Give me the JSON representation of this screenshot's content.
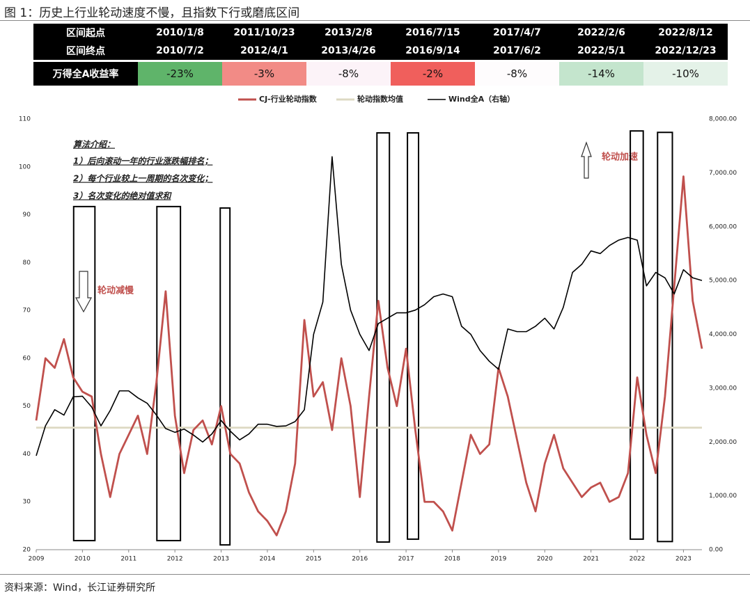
{
  "title": "图 1：历史上行业轮动速度不慢，且指数下行或磨底区间",
  "source": "资料来源：Wind，长江证券研究所",
  "table": {
    "row_labels": [
      "区间起点",
      "区间终点",
      "万得全A收益率"
    ],
    "periods": [
      {
        "start": "2010/1/8",
        "end": "2010/7/2",
        "return": "-23%",
        "color": "#5fb46a"
      },
      {
        "start": "2011/10/23",
        "end": "2012/4/1",
        "return": "-3%",
        "color": "#f28b86"
      },
      {
        "start": "2013/2/8",
        "end": "2013/4/26",
        "return": "-8%",
        "color": "#fcf3f8"
      },
      {
        "start": "2016/7/15",
        "end": "2016/9/14",
        "return": "-2%",
        "color": "#f05f5c"
      },
      {
        "start": "2017/4/7",
        "end": "2017/6/2",
        "return": "-8%",
        "color": "#fefcfd"
      },
      {
        "start": "2022/2/6",
        "end": "2022/5/1",
        "return": "-14%",
        "color": "#c4e5cd"
      },
      {
        "start": "2022/8/12",
        "end": "2022/12/23",
        "return": "-10%",
        "color": "#e4f2e8"
      }
    ]
  },
  "chart_data": {
    "type": "line",
    "x": [
      2009.0,
      2009.2,
      2009.4,
      2009.6,
      2009.8,
      2010.0,
      2010.2,
      2010.4,
      2010.6,
      2010.8,
      2011.0,
      2011.2,
      2011.4,
      2011.6,
      2011.8,
      2012.0,
      2012.2,
      2012.4,
      2012.6,
      2012.8,
      2013.0,
      2013.2,
      2013.4,
      2013.6,
      2013.8,
      2014.0,
      2014.2,
      2014.4,
      2014.6,
      2014.8,
      2015.0,
      2015.2,
      2015.4,
      2015.6,
      2015.8,
      2016.0,
      2016.2,
      2016.4,
      2016.6,
      2016.8,
      2017.0,
      2017.2,
      2017.4,
      2017.6,
      2017.8,
      2018.0,
      2018.2,
      2018.4,
      2018.6,
      2018.8,
      2019.0,
      2019.2,
      2019.4,
      2019.6,
      2019.8,
      2020.0,
      2020.2,
      2020.4,
      2020.6,
      2020.8,
      2021.0,
      2021.2,
      2021.4,
      2021.6,
      2021.8,
      2022.0,
      2022.2,
      2022.4,
      2022.6,
      2022.8,
      2023.0,
      2023.2,
      2023.4
    ],
    "series": [
      {
        "name": "CJ-行业轮动指数",
        "color": "#c0504d",
        "axis": "y",
        "values": [
          47,
          60,
          58,
          64,
          56,
          53,
          52,
          40,
          31,
          40,
          44,
          48,
          40,
          55,
          74,
          48,
          36,
          45,
          47,
          42,
          50,
          40,
          38,
          32,
          28,
          26,
          23,
          28,
          38,
          68,
          52,
          55,
          45,
          60,
          50,
          31,
          52,
          72,
          58,
          50,
          62,
          45,
          30,
          30,
          28,
          24,
          34,
          44,
          40,
          42,
          58,
          52,
          43,
          34,
          28,
          38,
          44,
          37,
          34,
          31,
          33,
          34,
          30,
          31,
          36,
          56,
          44,
          36,
          52,
          75,
          98,
          72,
          62
        ]
      },
      {
        "name": "轮动指数均值",
        "color": "#ddd9c3",
        "axis": "y",
        "values": [
          45.5,
          45.5,
          45.5,
          45.5,
          45.5,
          45.5,
          45.5,
          45.5,
          45.5,
          45.5,
          45.5,
          45.5,
          45.5,
          45.5,
          45.5,
          45.5,
          45.5,
          45.5,
          45.5,
          45.5,
          45.5,
          45.5,
          45.5,
          45.5,
          45.5,
          45.5,
          45.5,
          45.5,
          45.5,
          45.5,
          45.5,
          45.5,
          45.5,
          45.5,
          45.5,
          45.5,
          45.5,
          45.5,
          45.5,
          45.5,
          45.5,
          45.5,
          45.5,
          45.5,
          45.5,
          45.5,
          45.5,
          45.5,
          45.5,
          45.5,
          45.5,
          45.5,
          45.5,
          45.5,
          45.5,
          45.5,
          45.5,
          45.5,
          45.5,
          45.5,
          45.5,
          45.5,
          45.5,
          45.5,
          45.5,
          45.5,
          45.5,
          45.5,
          45.5,
          45.5,
          45.5,
          45.5,
          45.5
        ]
      },
      {
        "name": "Wind全A（右轴）",
        "color": "#000000",
        "axis": "y2",
        "values": [
          1745,
          2300,
          2600,
          2500,
          2840,
          2850,
          2650,
          2300,
          2585,
          2950,
          2950,
          2820,
          2720,
          2500,
          2250,
          2180,
          2240,
          2130,
          2000,
          2150,
          2400,
          2200,
          2040,
          2150,
          2330,
          2330,
          2290,
          2300,
          2380,
          2600,
          4000,
          4600,
          7300,
          5300,
          4450,
          4000,
          3700,
          4200,
          4300,
          4400,
          4400,
          4450,
          4550,
          4700,
          4750,
          4700,
          4150,
          4000,
          3700,
          3500,
          3350,
          4100,
          4050,
          4050,
          4150,
          4300,
          4100,
          4500,
          5150,
          5300,
          5550,
          5500,
          5650,
          5750,
          5800,
          5750,
          4900,
          5150,
          5050,
          4750,
          5200,
          5050,
          5000
        ]
      }
    ],
    "xlim": [
      2009,
      2023.4
    ],
    "xticks": [
      2009,
      2010,
      2011,
      2012,
      2013,
      2014,
      2015,
      2016,
      2017,
      2018,
      2019,
      2020,
      2021,
      2022,
      2023
    ],
    "ylim": [
      20,
      110
    ],
    "yticks": [
      20,
      30,
      40,
      50,
      60,
      70,
      80,
      90,
      100,
      110
    ],
    "y2lim": [
      0,
      8000
    ],
    "y2ticks": [
      {
        "value": 0,
        "label": "0.00"
      },
      {
        "value": 1000,
        "label": "1,000.00"
      },
      {
        "value": 2000,
        "label": "2,000.00"
      },
      {
        "value": 3000,
        "label": "3,000.00"
      },
      {
        "value": 4000,
        "label": "4,000.00"
      },
      {
        "value": 5000,
        "label": "5,000.00"
      },
      {
        "value": 6000,
        "label": "6,000.00"
      },
      {
        "value": 7000,
        "label": "7,000.00"
      },
      {
        "value": 8000,
        "label": "8,000.00"
      }
    ],
    "grid": false,
    "legend": "top",
    "boxes": [
      {
        "x": [
          2009.81,
          2010.27
        ],
        "y": [
          21.9,
          91.7
        ]
      },
      {
        "x": [
          2011.61,
          2012.12
        ],
        "y": [
          21.9,
          91.7
        ]
      },
      {
        "x": [
          2012.98,
          2013.19
        ],
        "y": [
          21.0,
          91.4
        ]
      },
      {
        "x": [
          2016.37,
          2016.64
        ],
        "y": [
          21.6,
          107.1
        ]
      },
      {
        "x": [
          2017.03,
          2017.27
        ],
        "y": [
          22.2,
          107.1
        ]
      },
      {
        "x": [
          2021.85,
          2022.13
        ],
        "y": [
          22.2,
          107.5
        ]
      },
      {
        "x": [
          2022.44,
          2022.76
        ],
        "y": [
          21.7,
          107.2
        ]
      }
    ],
    "annotations": {
      "method_title": "算法介绍：",
      "method_lines": [
        "1）后向滚动一年的行业涨跌幅排名；",
        "2）每个行业较上一周期的名次变化；",
        "3）名次变化的绝对值求和"
      ],
      "speed_up": "轮动加速",
      "slow_down": "轮动减慢"
    }
  }
}
